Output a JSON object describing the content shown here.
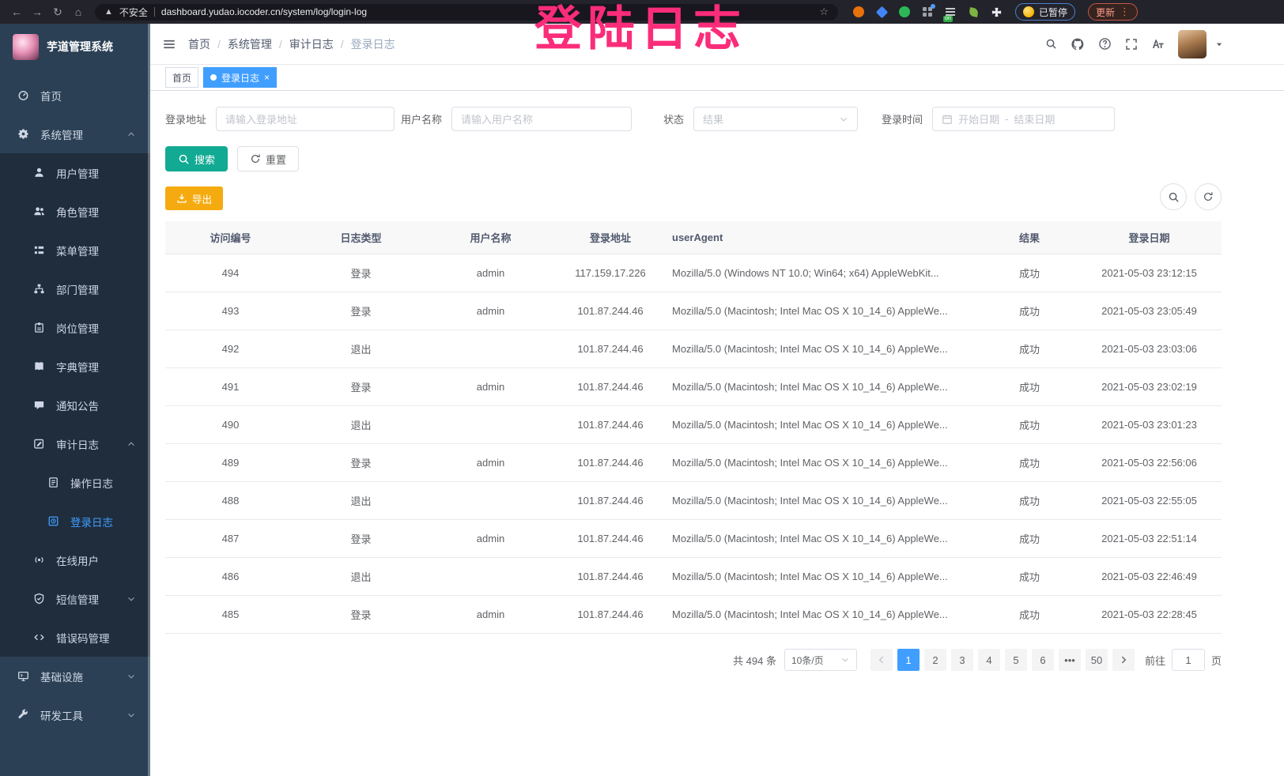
{
  "browser": {
    "security_label": "不安全",
    "url": "dashboard.yudao.iocoder.cn/system/log/login-log",
    "paused_label": "已暂停",
    "update_label": "更新",
    "extensions": [
      {
        "name": "orange-circle-extension-icon",
        "shape": "circle",
        "color": "#e8710a"
      },
      {
        "name": "blue-gem-extension-icon",
        "shape": "diamond",
        "color": "#4285f4"
      },
      {
        "name": "green-circle-extension-icon",
        "shape": "circle",
        "color": "#2cb858"
      },
      {
        "name": "grid-extension-icon",
        "shape": "grid",
        "color": "#9aa0a6"
      },
      {
        "name": "onetab-extension-icon",
        "shape": "list",
        "color": "#c7cacd",
        "badge": "on"
      },
      {
        "name": "leaf-extension-icon",
        "shape": "leaf",
        "color": "#7cb342"
      },
      {
        "name": "puzzle-extensions-icon",
        "shape": "puzzle",
        "color": "#e8eaed"
      }
    ]
  },
  "annotation": {
    "text": "登陆日志",
    "color": "#fb2c7a"
  },
  "sidebar": {
    "app_title": "芋道管理系统",
    "items": [
      {
        "label": "首页",
        "icon": "dashboard",
        "level": 1
      },
      {
        "label": "系统管理",
        "icon": "gear",
        "level": 1,
        "caret": "up"
      },
      {
        "label": "用户管理",
        "icon": "user",
        "level": 2
      },
      {
        "label": "角色管理",
        "icon": "users",
        "level": 2
      },
      {
        "label": "菜单管理",
        "icon": "menu",
        "level": 2
      },
      {
        "label": "部门管理",
        "icon": "org",
        "level": 2
      },
      {
        "label": "岗位管理",
        "icon": "badge",
        "level": 2
      },
      {
        "label": "字典管理",
        "icon": "dict",
        "level": 2
      },
      {
        "label": "通知公告",
        "icon": "announce",
        "level": 2
      },
      {
        "label": "审计日志",
        "icon": "audit",
        "level": 2,
        "caret": "up"
      },
      {
        "label": "操作日志",
        "icon": "doc",
        "level": 3
      },
      {
        "label": "登录日志",
        "icon": "loginlog",
        "level": 3,
        "active": true
      },
      {
        "label": "在线用户",
        "icon": "online",
        "level": 2
      },
      {
        "label": "短信管理",
        "icon": "shield",
        "level": 2,
        "caret": "down"
      },
      {
        "label": "错误码管理",
        "icon": "code",
        "level": 2
      },
      {
        "label": "基础设施",
        "icon": "monitor",
        "level": 1,
        "caret": "down"
      },
      {
        "label": "研发工具",
        "icon": "tools",
        "level": 1,
        "caret": "down"
      }
    ]
  },
  "header": {
    "breadcrumb": [
      "首页",
      "系统管理",
      "审计日志",
      "登录日志"
    ]
  },
  "tabs": [
    {
      "label": "首页",
      "active": false,
      "closable": false
    },
    {
      "label": "登录日志",
      "active": true,
      "closable": true
    }
  ],
  "filters": {
    "address_label": "登录地址",
    "address_placeholder": "请输入登录地址",
    "username_label": "用户名称",
    "username_placeholder": "请输入用户名称",
    "status_label": "状态",
    "status_placeholder": "结果",
    "time_label": "登录时间",
    "start_placeholder": "开始日期",
    "range_separator": "-",
    "end_placeholder": "结束日期",
    "search_button": "搜索",
    "reset_button": "重置",
    "export_button": "导出"
  },
  "table": {
    "columns": [
      "访问编号",
      "日志类型",
      "用户名称",
      "登录地址",
      "userAgent",
      "结果",
      "登录日期"
    ],
    "rows": [
      {
        "id": "494",
        "type": "登录",
        "user": "admin",
        "ip": "117.159.17.226",
        "ua": "Mozilla/5.0 (Windows NT 10.0; Win64; x64) AppleWebKit...",
        "result": "成功",
        "date": "2021-05-03 23:12:15"
      },
      {
        "id": "493",
        "type": "登录",
        "user": "admin",
        "ip": "101.87.244.46",
        "ua": "Mozilla/5.0 (Macintosh; Intel Mac OS X 10_14_6) AppleWe...",
        "result": "成功",
        "date": "2021-05-03 23:05:49"
      },
      {
        "id": "492",
        "type": "退出",
        "user": "",
        "ip": "101.87.244.46",
        "ua": "Mozilla/5.0 (Macintosh; Intel Mac OS X 10_14_6) AppleWe...",
        "result": "成功",
        "date": "2021-05-03 23:03:06"
      },
      {
        "id": "491",
        "type": "登录",
        "user": "admin",
        "ip": "101.87.244.46",
        "ua": "Mozilla/5.0 (Macintosh; Intel Mac OS X 10_14_6) AppleWe...",
        "result": "成功",
        "date": "2021-05-03 23:02:19"
      },
      {
        "id": "490",
        "type": "退出",
        "user": "",
        "ip": "101.87.244.46",
        "ua": "Mozilla/5.0 (Macintosh; Intel Mac OS X 10_14_6) AppleWe...",
        "result": "成功",
        "date": "2021-05-03 23:01:23"
      },
      {
        "id": "489",
        "type": "登录",
        "user": "admin",
        "ip": "101.87.244.46",
        "ua": "Mozilla/5.0 (Macintosh; Intel Mac OS X 10_14_6) AppleWe...",
        "result": "成功",
        "date": "2021-05-03 22:56:06"
      },
      {
        "id": "488",
        "type": "退出",
        "user": "",
        "ip": "101.87.244.46",
        "ua": "Mozilla/5.0 (Macintosh; Intel Mac OS X 10_14_6) AppleWe...",
        "result": "成功",
        "date": "2021-05-03 22:55:05"
      },
      {
        "id": "487",
        "type": "登录",
        "user": "admin",
        "ip": "101.87.244.46",
        "ua": "Mozilla/5.0 (Macintosh; Intel Mac OS X 10_14_6) AppleWe...",
        "result": "成功",
        "date": "2021-05-03 22:51:14"
      },
      {
        "id": "486",
        "type": "退出",
        "user": "",
        "ip": "101.87.244.46",
        "ua": "Mozilla/5.0 (Macintosh; Intel Mac OS X 10_14_6) AppleWe...",
        "result": "成功",
        "date": "2021-05-03 22:46:49"
      },
      {
        "id": "485",
        "type": "登录",
        "user": "admin",
        "ip": "101.87.244.46",
        "ua": "Mozilla/5.0 (Macintosh; Intel Mac OS X 10_14_6) AppleWe...",
        "result": "成功",
        "date": "2021-05-03 22:28:45"
      }
    ]
  },
  "pagination": {
    "total_label": "共 494 条",
    "page_size_label": "10条/页",
    "pages": [
      "1",
      "2",
      "3",
      "4",
      "5",
      "6",
      "•••",
      "50"
    ],
    "active_page": "1",
    "jumper_prefix": "前往",
    "jumper_value": "1",
    "jumper_suffix": "页"
  },
  "colors": {
    "accent": "#409eff",
    "search_button": "#12aa93",
    "export_button": "#f5ab0f",
    "sidebar_bg": "#2b4055",
    "submenu_bg": "#1f2d3d",
    "annotation": "#fb2c7a"
  }
}
